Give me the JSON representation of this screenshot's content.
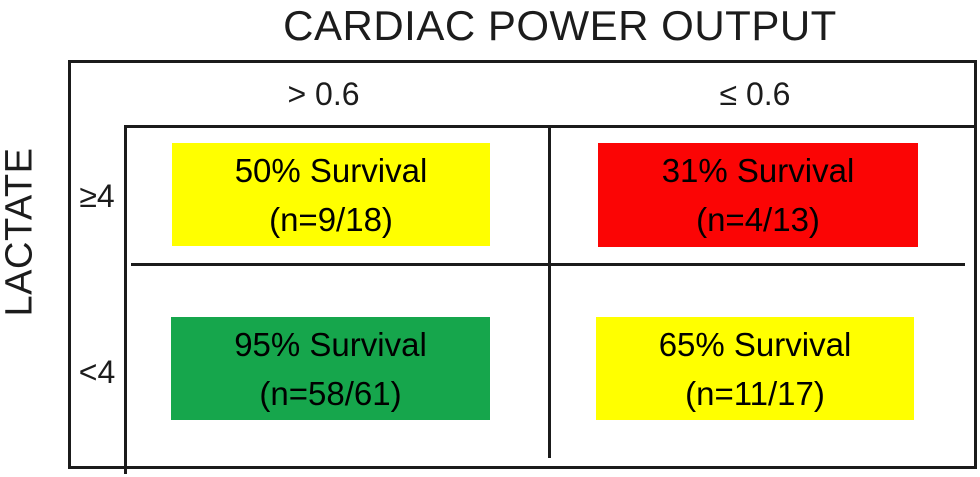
{
  "figure": {
    "title": "CARDIAC POWER OUTPUT",
    "y_axis_label": "LACTATE",
    "columns": [
      {
        "label": "> 0.6"
      },
      {
        "label": "≤ 0.6"
      }
    ],
    "rows": [
      {
        "label": "≥4"
      },
      {
        "label": "<4"
      }
    ],
    "cells": [
      {
        "row": "≥4",
        "column": "> 0.6",
        "line1": "50% Survival",
        "line2": "(n=9/18)",
        "survival_pct": 50,
        "n_survived": 9,
        "n_total": 18,
        "color": "#ffff00"
      },
      {
        "row": "≥4",
        "column": "≤ 0.6",
        "line1": "31% Survival",
        "line2": "(n=4/13)",
        "survival_pct": 31,
        "n_survived": 4,
        "n_total": 13,
        "color": "#fb0505"
      },
      {
        "row": "<4",
        "column": "> 0.6",
        "line1": "95% Survival",
        "line2": "(n=58/61)",
        "survival_pct": 95,
        "n_survived": 58,
        "n_total": 61,
        "color": "#16a64c"
      },
      {
        "row": "<4",
        "column": "≤ 0.6",
        "line1": "65% Survival",
        "line2": "(n=11/17)",
        "survival_pct": 65,
        "n_survived": 11,
        "n_total": 17,
        "color": "#ffff00"
      }
    ],
    "line_color": "#1b1b1b",
    "text_color": "#000000"
  }
}
